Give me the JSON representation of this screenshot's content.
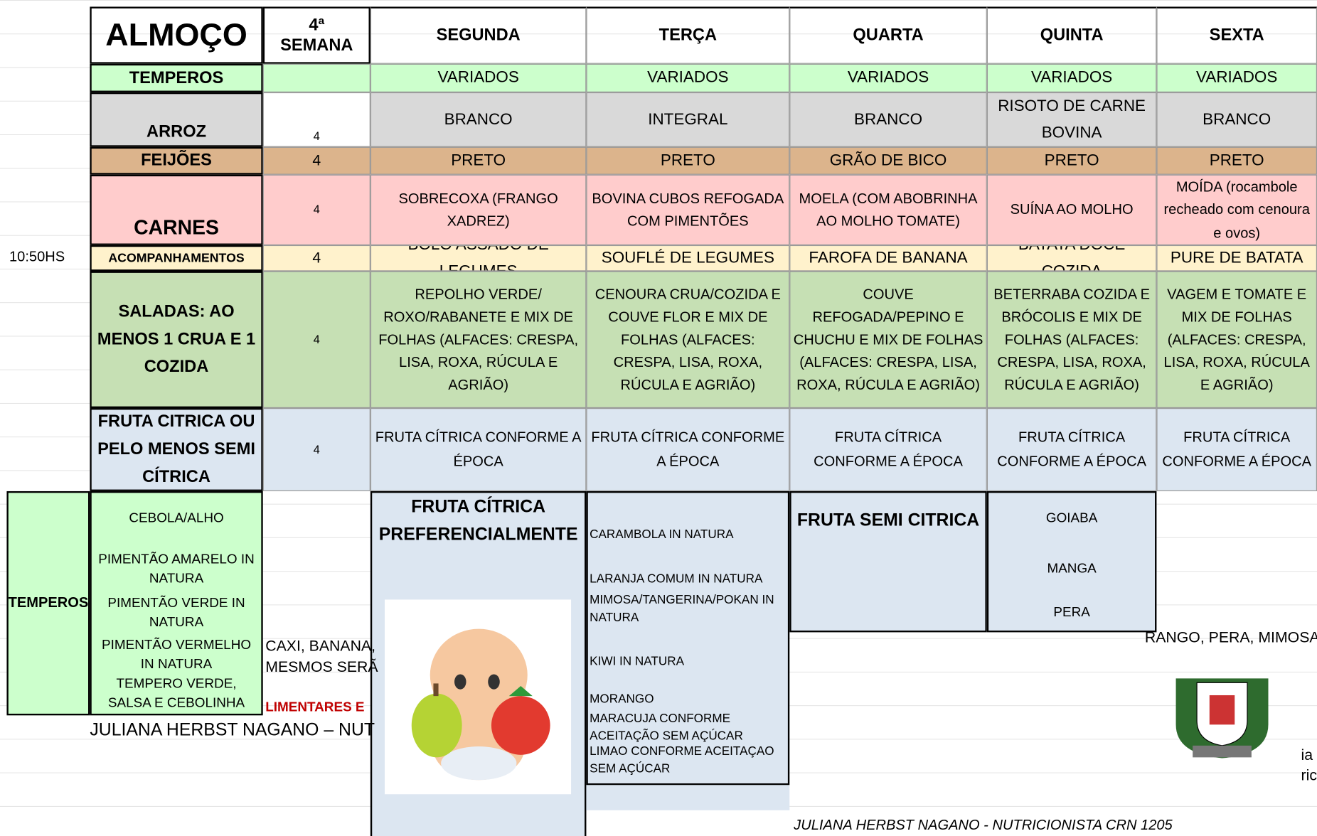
{
  "header": {
    "meal": "ALMOÇO",
    "week": "4ª SEMANA",
    "days": [
      "SEGUNDA",
      "TERÇA",
      "QUARTA",
      "QUINTA",
      "SEXTA"
    ]
  },
  "time": "10:50HS",
  "rows": [
    {
      "label": "TEMPEROS",
      "items": [
        "VARIADOS",
        "VARIADOS",
        "VARIADOS",
        "VARIADOS",
        "VARIADOS"
      ]
    },
    {
      "label": "ARROZ",
      "week": "4",
      "items": [
        "BRANCO",
        "INTEGRAL",
        "BRANCO",
        "RISOTO DE CARNE BOVINA",
        "BRANCO"
      ]
    },
    {
      "label": "FEIJÕES",
      "week": "4",
      "items": [
        "PRETO",
        "PRETO",
        "GRÃO DE BICO",
        "PRETO",
        "PRETO"
      ]
    },
    {
      "label": "CARNES",
      "week": "4",
      "items": [
        "SOBRECOXA (FRANGO XADREZ)",
        "BOVINA CUBOS REFOGADA COM PIMENTÕES",
        "MOELA (COM ABOBRINHA AO MOLHO TOMATE)",
        "SUÍNA AO MOLHO",
        "MOÍDA (rocambole recheado com cenoura e ovos)"
      ]
    },
    {
      "label": "ACOMPANHAMENTOS",
      "week": "4",
      "items": [
        "BOLO ASSADO DE LEGUMES",
        "SOUFLÉ DE LEGUMES",
        "FAROFA DE BANANA",
        "BATATA DOCE COZIDA",
        "PURE DE BATATA"
      ]
    },
    {
      "label": "SALADAS: AO MENOS 1 CRUA E 1 COZIDA",
      "week": "4",
      "items": [
        "REPOLHO VERDE/ ROXO/RABANETE E MIX DE FOLHAS (ALFACES: CRESPA, LISA, ROXA, RÚCULA E AGRIÃO)",
        "CENOURA CRUA/COZIDA E COUVE FLOR  E MIX DE FOLHAS (ALFACES: CRESPA, LISA, ROXA, RÚCULA E AGRIÃO)",
        "COUVE REFOGADA/PEPINO E CHUCHU E MIX DE FOLHAS (ALFACES: CRESPA, LISA, ROXA, RÚCULA E AGRIÃO)",
        "BETERRABA COZIDA E BRÓCOLIS E MIX DE FOLHAS (ALFACES: CRESPA, LISA, ROXA, RÚCULA E AGRIÃO)",
        "VAGEM E TOMATE E MIX DE FOLHAS (ALFACES: CRESPA, LISA, ROXA, RÚCULA E AGRIÃO)"
      ]
    },
    {
      "label": "FRUTA CITRICA OU PELO MENOS SEMI CÍTRICA",
      "week": "4",
      "items": [
        "FRUTA CÍTRICA CONFORME A ÉPOCA",
        "FRUTA CÍTRICA CONFORME A ÉPOCA",
        "FRUTA CÍTRICA CONFORME A ÉPOCA",
        "FRUTA CÍTRICA CONFORME A ÉPOCA",
        "FRUTA CÍTRICA CONFORME A ÉPOCA"
      ]
    }
  ],
  "temperos": {
    "label": "TEMPEROS",
    "items": [
      "CEBOLA/ALHO",
      "PIMENTÃO AMARELO IN NATURA",
      "PIMENTÃO VERDE IN NATURA",
      "PIMENTÃO VERMELHO IN NATURA",
      "TEMPERO VERDE, SALSA E CEBOLINHA"
    ]
  },
  "citrus": {
    "title": "FRUTA CÍTRICA PREFERENCIALMENTE",
    "items": [
      "CARAMBOLA IN NATURA",
      "LARANJA COMUM IN NATURA",
      "MIMOSA/TANGERINA/POKAN IN NATURA",
      "KIWI IN NATURA",
      "MORANGO",
      "MARACUJA CONFORME ACEITAÇÃO SEM AÇÚCAR",
      "LIMAO CONFORME ACEITAÇAO SEM AÇÚCAR"
    ]
  },
  "semi_citrus": {
    "title": "FRUTA SEMI CITRICA",
    "items": [
      "GOIABA",
      "MANGA",
      "PERA"
    ]
  },
  "fragments": [
    "CAXI, BANANA,",
    "MESMOS SERÃ",
    "LIMENTARES E",
    "RANGO, PERA, MIMOSA",
    "ia",
    "ric"
  ],
  "footer_partial": "JULIANA HERBST NAGANO – NUT",
  "signature": "JULIANA HERBST NAGANO - NUTRICIONISTA CRN 1205"
}
